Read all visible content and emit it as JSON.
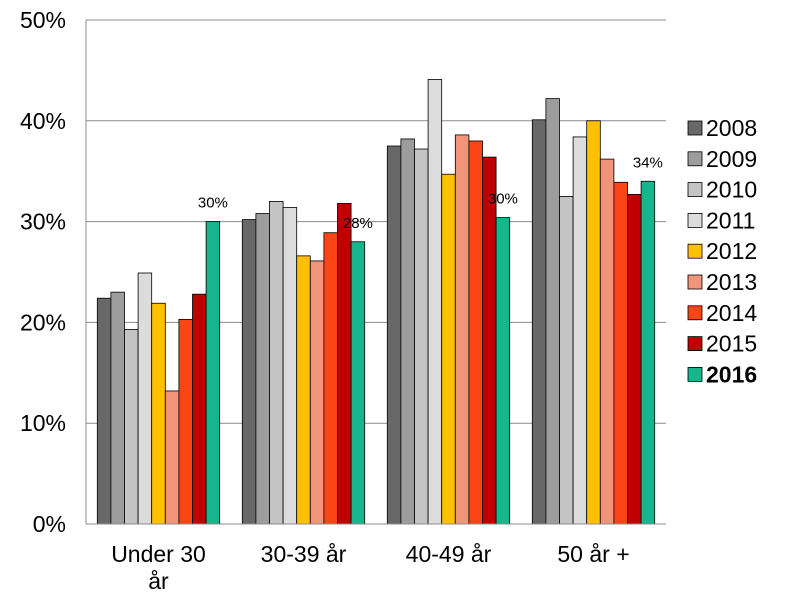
{
  "chart_data": {
    "type": "bar",
    "categories": [
      [
        "Under 30",
        "år"
      ],
      [
        "30-39 år"
      ],
      [
        "40-49 år"
      ],
      [
        "50 år +"
      ]
    ],
    "ylim": [
      0,
      50
    ],
    "yticks": [
      "0%",
      "10%",
      "20%",
      "30%",
      "40%",
      "50%"
    ],
    "grid": true,
    "legend_placement": "right",
    "series": [
      {
        "name": "2008",
        "color": "#686868",
        "values": [
          22.4,
          30.2,
          37.5,
          40.1
        ]
      },
      {
        "name": "2009",
        "color": "#9d9d9d",
        "values": [
          23.0,
          30.8,
          38.2,
          42.2
        ]
      },
      {
        "name": "2010",
        "color": "#c4c4c4",
        "values": [
          19.3,
          32.0,
          37.2,
          32.5
        ]
      },
      {
        "name": "2011",
        "color": "#dcdcdc",
        "values": [
          24.9,
          31.4,
          44.1,
          38.4
        ]
      },
      {
        "name": "2012",
        "color": "#ffc000",
        "values": [
          21.9,
          26.6,
          34.7,
          40.0
        ]
      },
      {
        "name": "2013",
        "color": "#f0947a",
        "values": [
          13.2,
          26.1,
          38.6,
          36.2
        ]
      },
      {
        "name": "2014",
        "color": "#fa4616",
        "values": [
          20.3,
          28.9,
          38.0,
          33.9
        ]
      },
      {
        "name": "2015",
        "color": "#c00000",
        "values": [
          22.8,
          31.8,
          36.4,
          32.7
        ]
      },
      {
        "name": "2016",
        "color": "#17b58c",
        "values": [
          30.0,
          28.0,
          30.4,
          34.0
        ],
        "bold": true
      }
    ],
    "data_labels": [
      "30%",
      "28%",
      "30%",
      "34%"
    ]
  }
}
